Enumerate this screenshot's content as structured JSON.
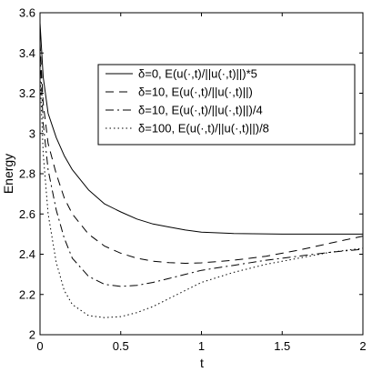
{
  "chart_data": {
    "type": "line",
    "title": "",
    "xlabel": "t",
    "ylabel": "Energy",
    "xlim": [
      0,
      2
    ],
    "ylim": [
      2,
      3.6
    ],
    "x_ticks": [
      "0",
      "0.5",
      "1",
      "1.5",
      "2"
    ],
    "y_ticks": [
      "2",
      "2.2",
      "2.4",
      "2.6",
      "2.8",
      "3",
      "3.2",
      "3.4",
      "3.6"
    ],
    "grid": false,
    "legend_position": "top-right",
    "series": [
      {
        "name": "δ=0,   E(u(·,t)/||u(·,t)||)*5",
        "style": "solid",
        "color": "#000000",
        "points": [
          [
            0.0,
            3.55
          ],
          [
            0.02,
            3.28
          ],
          [
            0.05,
            3.1
          ],
          [
            0.1,
            2.98
          ],
          [
            0.15,
            2.89
          ],
          [
            0.2,
            2.82
          ],
          [
            0.3,
            2.72
          ],
          [
            0.4,
            2.65
          ],
          [
            0.5,
            2.61
          ],
          [
            0.6,
            2.575
          ],
          [
            0.7,
            2.55
          ],
          [
            0.8,
            2.535
          ],
          [
            0.9,
            2.52
          ],
          [
            1.0,
            2.51
          ],
          [
            1.2,
            2.503
          ],
          [
            1.5,
            2.5
          ],
          [
            1.8,
            2.5
          ],
          [
            2.0,
            2.5
          ]
        ]
      },
      {
        "name": "δ=10,  E(u(·,t)/||u(·,t)||)",
        "style": "dashed",
        "color": "#000000",
        "points": [
          [
            0.0,
            3.45
          ],
          [
            0.02,
            3.15
          ],
          [
            0.05,
            2.95
          ],
          [
            0.1,
            2.8
          ],
          [
            0.15,
            2.68
          ],
          [
            0.2,
            2.6
          ],
          [
            0.3,
            2.5
          ],
          [
            0.4,
            2.44
          ],
          [
            0.5,
            2.405
          ],
          [
            0.6,
            2.38
          ],
          [
            0.7,
            2.365
          ],
          [
            0.8,
            2.358
          ],
          [
            0.9,
            2.355
          ],
          [
            1.0,
            2.357
          ],
          [
            1.2,
            2.37
          ],
          [
            1.4,
            2.39
          ],
          [
            1.6,
            2.42
          ],
          [
            1.8,
            2.455
          ],
          [
            2.0,
            2.49
          ]
        ]
      },
      {
        "name": "δ=10,  E(u(·,t)/||u(·,t)||)/4",
        "style": "dashdot",
        "color": "#000000",
        "points": [
          [
            0.0,
            3.4
          ],
          [
            0.02,
            3.05
          ],
          [
            0.05,
            2.82
          ],
          [
            0.1,
            2.62
          ],
          [
            0.15,
            2.48
          ],
          [
            0.2,
            2.38
          ],
          [
            0.3,
            2.29
          ],
          [
            0.4,
            2.25
          ],
          [
            0.5,
            2.24
          ],
          [
            0.6,
            2.245
          ],
          [
            0.7,
            2.26
          ],
          [
            0.8,
            2.28
          ],
          [
            0.9,
            2.3
          ],
          [
            1.0,
            2.32
          ],
          [
            1.2,
            2.345
          ],
          [
            1.4,
            2.37
          ],
          [
            1.6,
            2.39
          ],
          [
            1.8,
            2.41
          ],
          [
            2.0,
            2.425
          ]
        ]
      },
      {
        "name": "δ=100, E(u(·,t)/||u(·,t)||)/8",
        "style": "dotted",
        "color": "#000000",
        "points": [
          [
            0.0,
            3.3
          ],
          [
            0.02,
            2.9
          ],
          [
            0.05,
            2.6
          ],
          [
            0.1,
            2.36
          ],
          [
            0.15,
            2.22
          ],
          [
            0.2,
            2.15
          ],
          [
            0.3,
            2.095
          ],
          [
            0.4,
            2.085
          ],
          [
            0.5,
            2.09
          ],
          [
            0.6,
            2.11
          ],
          [
            0.7,
            2.14
          ],
          [
            0.8,
            2.18
          ],
          [
            0.9,
            2.22
          ],
          [
            1.0,
            2.26
          ],
          [
            1.2,
            2.31
          ],
          [
            1.4,
            2.35
          ],
          [
            1.6,
            2.38
          ],
          [
            1.8,
            2.41
          ],
          [
            2.0,
            2.43
          ]
        ]
      }
    ]
  }
}
